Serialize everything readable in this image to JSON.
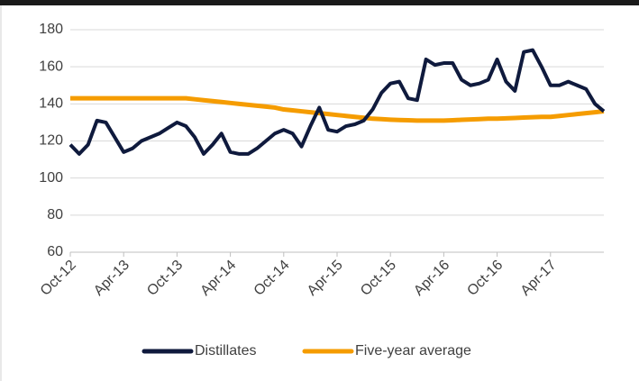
{
  "chart_data": {
    "type": "line",
    "categories": [
      "Oct-12",
      null,
      null,
      null,
      null,
      null,
      "Apr-13",
      null,
      null,
      null,
      null,
      null,
      "Oct-13",
      null,
      null,
      null,
      null,
      null,
      "Apr-14",
      null,
      null,
      null,
      null,
      null,
      "Oct-14",
      null,
      null,
      null,
      null,
      null,
      "Apr-15",
      null,
      null,
      null,
      null,
      null,
      "Oct-15",
      null,
      null,
      null,
      null,
      null,
      "Apr-16",
      null,
      null,
      null,
      null,
      null,
      "Oct-16",
      null,
      null,
      null,
      null,
      null,
      "Apr-17",
      null,
      null,
      null,
      null,
      null,
      null
    ],
    "series": [
      {
        "name": "Distillates",
        "color": "#0f1a3d",
        "values": [
          118,
          113,
          118,
          131,
          130,
          122,
          114,
          116,
          120,
          122,
          124,
          127,
          130,
          128,
          122,
          113,
          118,
          124,
          114,
          113,
          113,
          116,
          120,
          124,
          126,
          124,
          117,
          128,
          138,
          126,
          125,
          128,
          129,
          131,
          137,
          146,
          151,
          152,
          143,
          142,
          164,
          161,
          162,
          162,
          153,
          150,
          151,
          153,
          164,
          152,
          147,
          168,
          169,
          160,
          150,
          150,
          152,
          150,
          148,
          140,
          136
        ]
      },
      {
        "name": "Five-year average",
        "color": "#f59c00",
        "values": [
          143,
          143,
          143,
          143,
          143,
          143,
          143,
          143,
          143,
          143,
          143,
          143,
          143,
          143,
          142.5,
          142,
          141.5,
          141,
          140.5,
          140,
          139.5,
          139,
          138.5,
          138,
          137,
          136.5,
          136,
          135.5,
          135,
          134.5,
          134,
          133.5,
          133,
          132.5,
          132,
          131.8,
          131.5,
          131.3,
          131.2,
          131,
          131,
          131,
          131,
          131.2,
          131.4,
          131.6,
          131.8,
          132,
          132,
          132.2,
          132.4,
          132.6,
          132.8,
          133,
          133,
          133.5,
          134,
          134.5,
          135,
          135.5,
          136
        ]
      }
    ],
    "ylim": [
      60,
      180
    ],
    "yticks": [
      60,
      80,
      100,
      120,
      140,
      160,
      180
    ],
    "grid": true,
    "legend": "bottom"
  }
}
